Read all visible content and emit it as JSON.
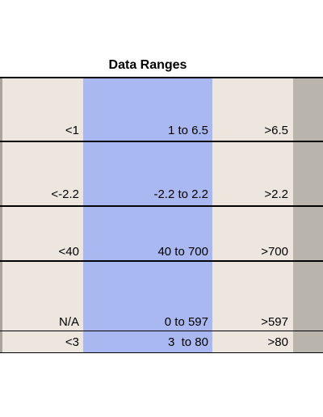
{
  "table": {
    "title": "Data Ranges",
    "rows": [
      [
        "<1",
        "1 to 6.5",
        ">6.5"
      ],
      [
        "<-2.2",
        "-2.2 to 2.2",
        ">2.2"
      ],
      [
        "<40",
        "40 to 700",
        ">700"
      ],
      [
        "N/A",
        "0 to 597",
        ">597"
      ],
      [
        "<3",
        "3  to 80",
        ">80"
      ]
    ]
  }
}
